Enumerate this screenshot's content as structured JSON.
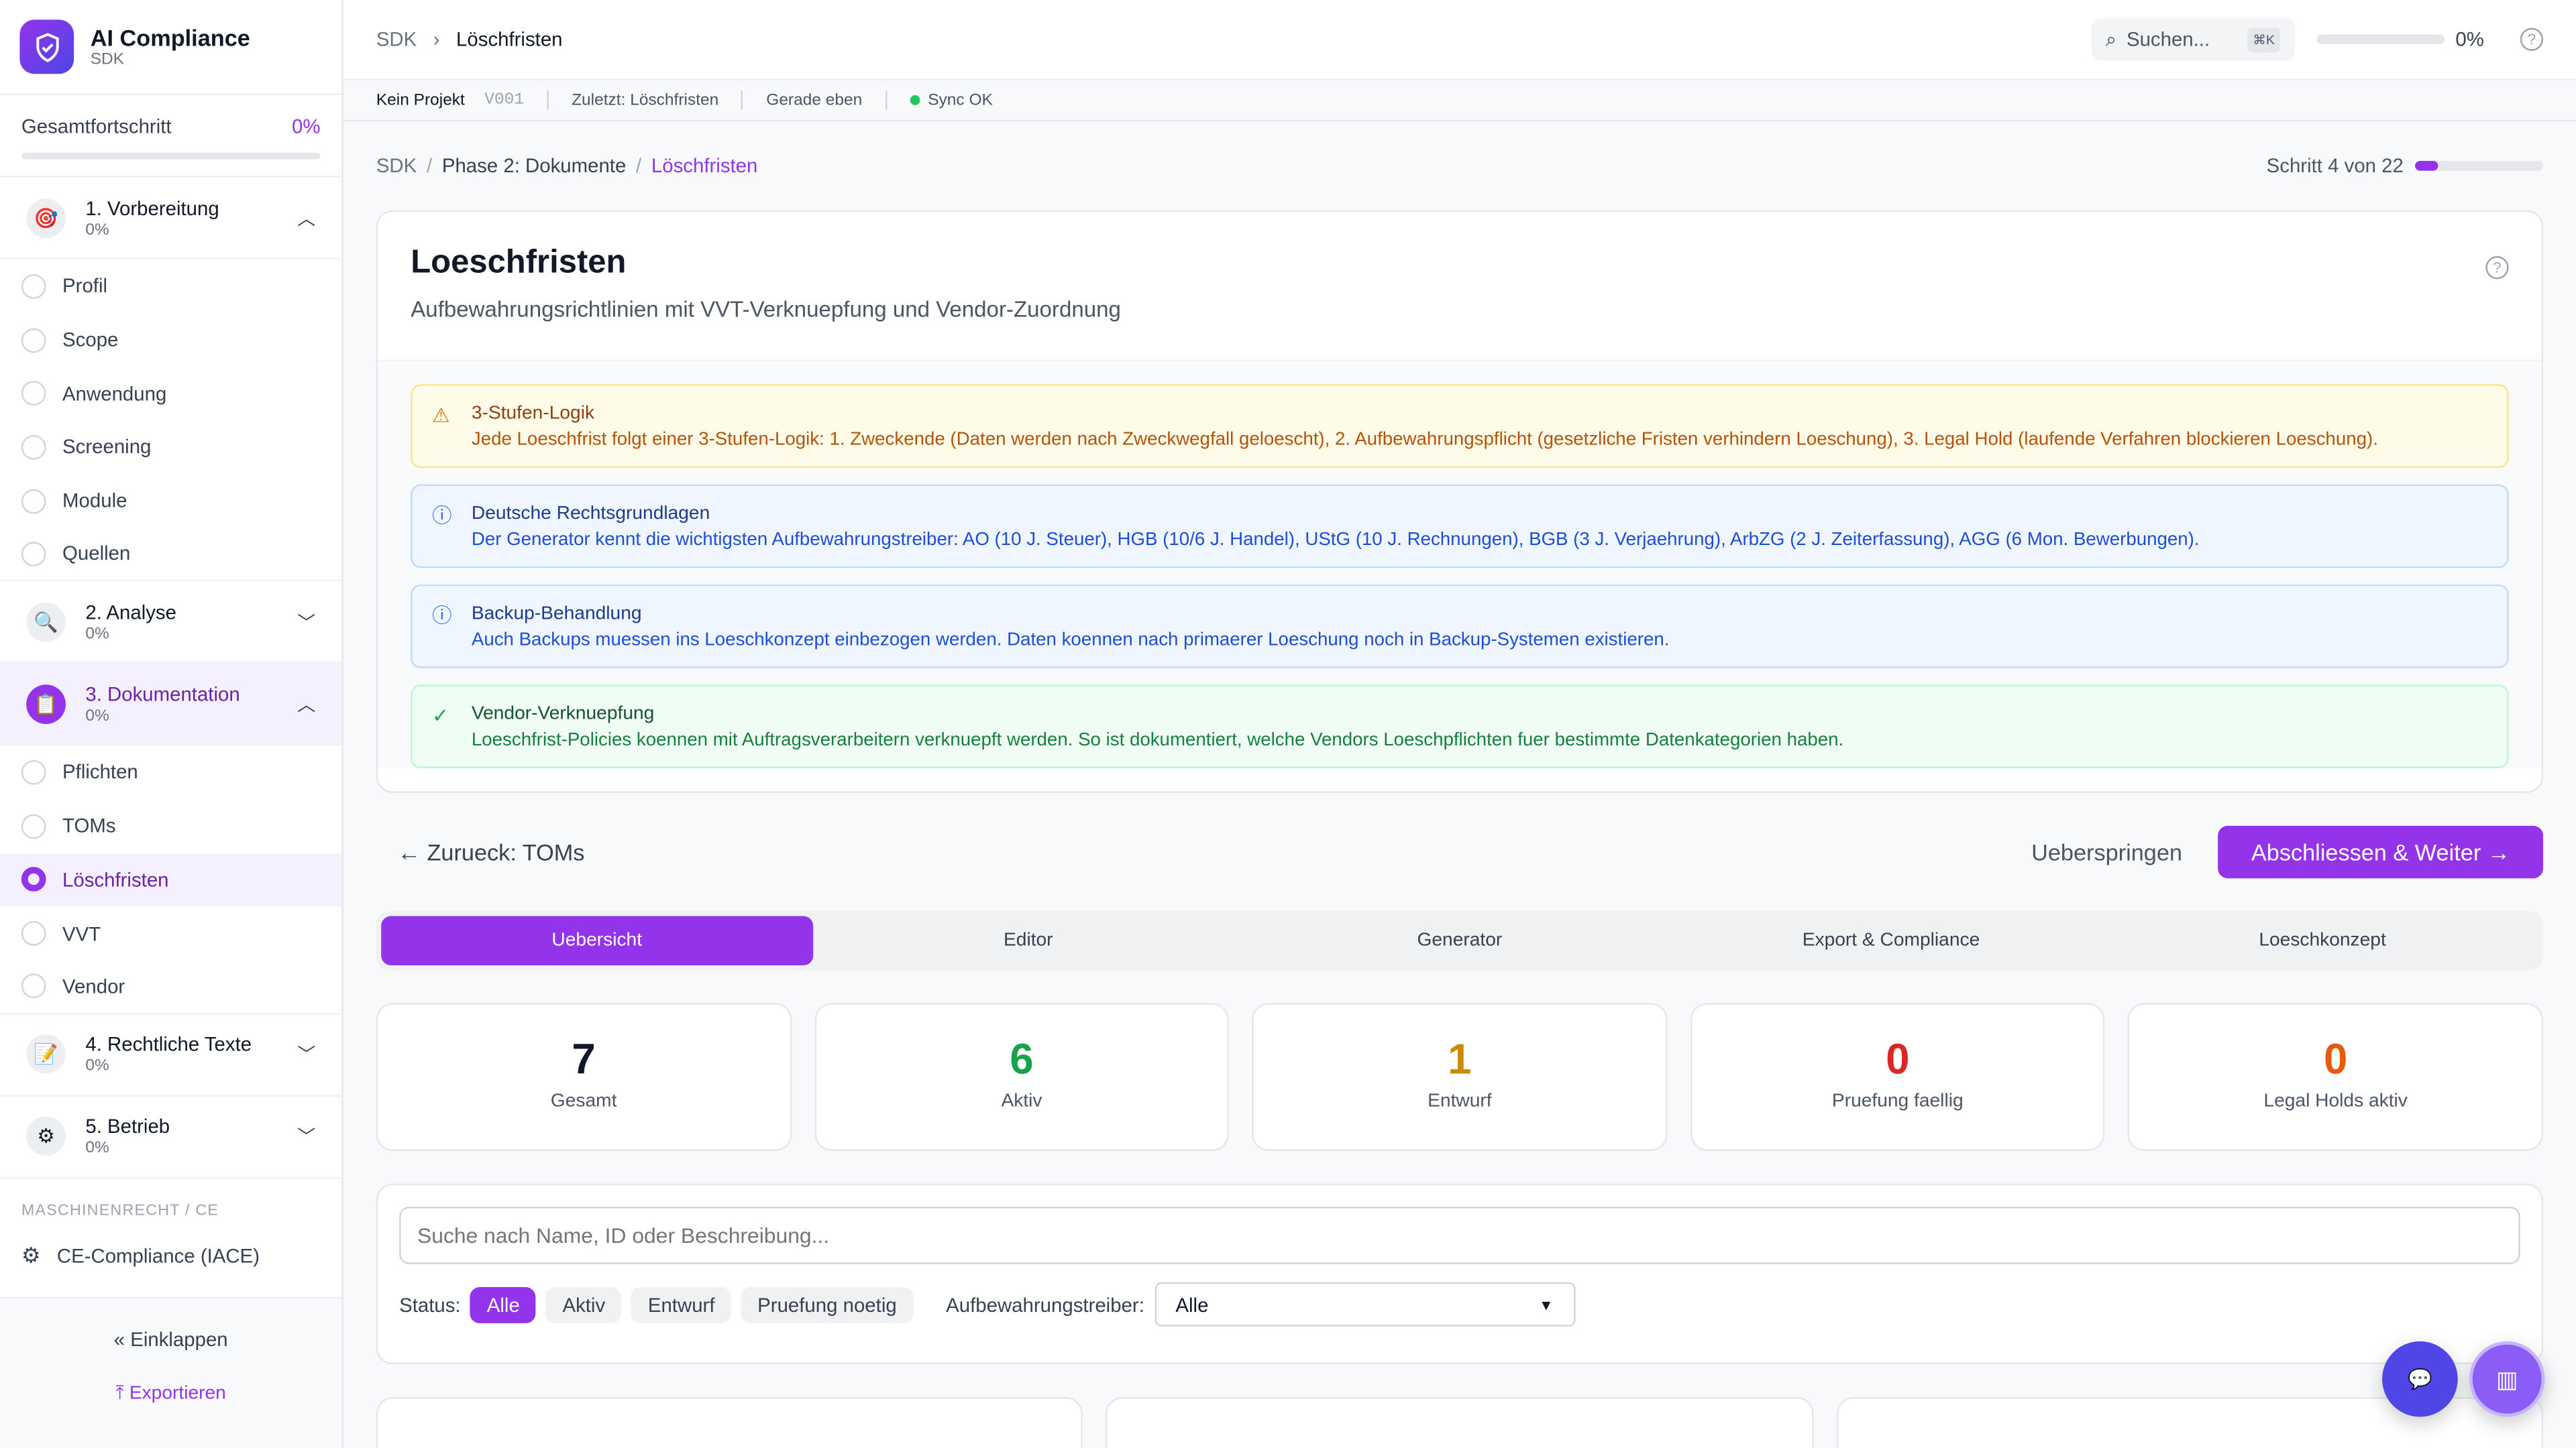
{
  "app": {
    "title": "AI Compliance",
    "subtitle": "SDK"
  },
  "sidebar": {
    "progress_label": "Gesamtfortschritt",
    "progress_value": "0%",
    "progress_fraction": 0,
    "phases": [
      {
        "label": "1. Vorbereitung",
        "pct": "0%",
        "icon": "target-icon",
        "expanded": true,
        "items": [
          "Profil",
          "Scope",
          "Anwendung",
          "Screening",
          "Module",
          "Quellen"
        ]
      },
      {
        "label": "2. Analyse",
        "pct": "0%",
        "icon": "magnifier-icon",
        "expanded": false
      },
      {
        "label": "3. Dokumentation",
        "pct": "0%",
        "icon": "clipboard-icon",
        "expanded": true,
        "items": [
          "Pflichten",
          "TOMs",
          "Löschfristen",
          "VVT",
          "Vendor"
        ],
        "active_item": "Löschfristen"
      },
      {
        "label": "4. Rechtliche Texte",
        "pct": "0%",
        "icon": "pencil-icon",
        "expanded": false
      },
      {
        "label": "5. Betrieb",
        "pct": "0%",
        "icon": "gear-icon",
        "expanded": false
      }
    ],
    "section_label": "MASCHINENRECHT / CE",
    "ce_item": "CE-Compliance (IACE)",
    "collapse": "Einklappen",
    "export": "Exportieren"
  },
  "header": {
    "crumb_root": "SDK",
    "crumb_current": "Löschfristen",
    "search_placeholder": "Suchen...",
    "shortcut": "⌘K",
    "progress": "0%",
    "progress_fraction": 0
  },
  "infobar": {
    "project": "Kein Projekt",
    "version": "V001",
    "last": "Zuletzt: Löschfristen",
    "time": "Gerade eben",
    "sync": "Sync OK"
  },
  "breadcrumb": {
    "a": "SDK",
    "b": "Phase 2: Dokumente",
    "c": "Löschfristen",
    "step": "Schritt 4 von 22",
    "step_fraction": 0.18
  },
  "page": {
    "title": "Loeschfristen",
    "subtitle": "Aufbewahrungsrichtlinien mit VVT-Verknuepfung und Vendor-Zuordnung"
  },
  "notes": [
    {
      "title": "3-Stufen-Logik",
      "text": "Jede Loeschfrist folgt einer 3-Stufen-Logik: 1. Zweckende (Daten werden nach Zweckwegfall geloescht), 2. Aufbewahrungspflicht (gesetzliche Fristen verhindern Loeschung), 3. Legal Hold (laufende Verfahren blockieren Loeschung).",
      "icon": "warning-icon"
    },
    {
      "title": "Deutsche Rechtsgrundlagen",
      "text": "Der Generator kennt die wichtigsten Aufbewahrungstreiber: AO (10 J. Steuer), HGB (10/6 J. Handel), UStG (10 J. Rechnungen), BGB (3 J. Verjaehrung), ArbZG (2 J. Zeiterfassung), AGG (6 Mon. Bewerbungen).",
      "icon": "info-icon"
    },
    {
      "title": "Backup-Behandlung",
      "text": "Auch Backups muessen ins Loeschkonzept einbezogen werden. Daten koennen nach primaerer Loeschung noch in Backup-Systemen existieren.",
      "icon": "info-icon"
    },
    {
      "title": "Vendor-Verknuepfung",
      "text": "Loeschfrist-Policies koennen mit Auftragsverarbeitern verknuepft werden. So ist dokumentiert, welche Vendors Loeschpflichten fuer bestimmte Datenkategorien haben.",
      "icon": "check-circle-icon"
    }
  ],
  "nav": {
    "back": "Zurueck: TOMs",
    "skip": "Ueberspringen",
    "next": "Abschliessen & Weiter"
  },
  "tabs": [
    "Uebersicht",
    "Editor",
    "Generator",
    "Export & Compliance",
    "Loeschkonzept"
  ],
  "stats": [
    {
      "value": "7",
      "label": "Gesamt",
      "color": "#111827"
    },
    {
      "value": "6",
      "label": "Aktiv",
      "color": "#16a34a"
    },
    {
      "value": "1",
      "label": "Entwurf",
      "color": "#ca8a04"
    },
    {
      "value": "0",
      "label": "Pruefung faellig",
      "color": "#dc2626"
    },
    {
      "value": "0",
      "label": "Legal Holds aktiv",
      "color": "#ea580c"
    }
  ],
  "filter": {
    "search_placeholder": "Suche nach Name, ID oder Beschreibung...",
    "status_label": "Status:",
    "chips": [
      "Alle",
      "Aktiv",
      "Entwurf",
      "Pruefung noetig"
    ],
    "driver_label": "Aufbewahrungstreiber:",
    "driver_value": "Alle"
  },
  "colors": {
    "accent": "#9333ea",
    "warning_bg": "#fefce8",
    "info_bg": "#eff6ff",
    "success_bg": "#f0fdf4"
  }
}
